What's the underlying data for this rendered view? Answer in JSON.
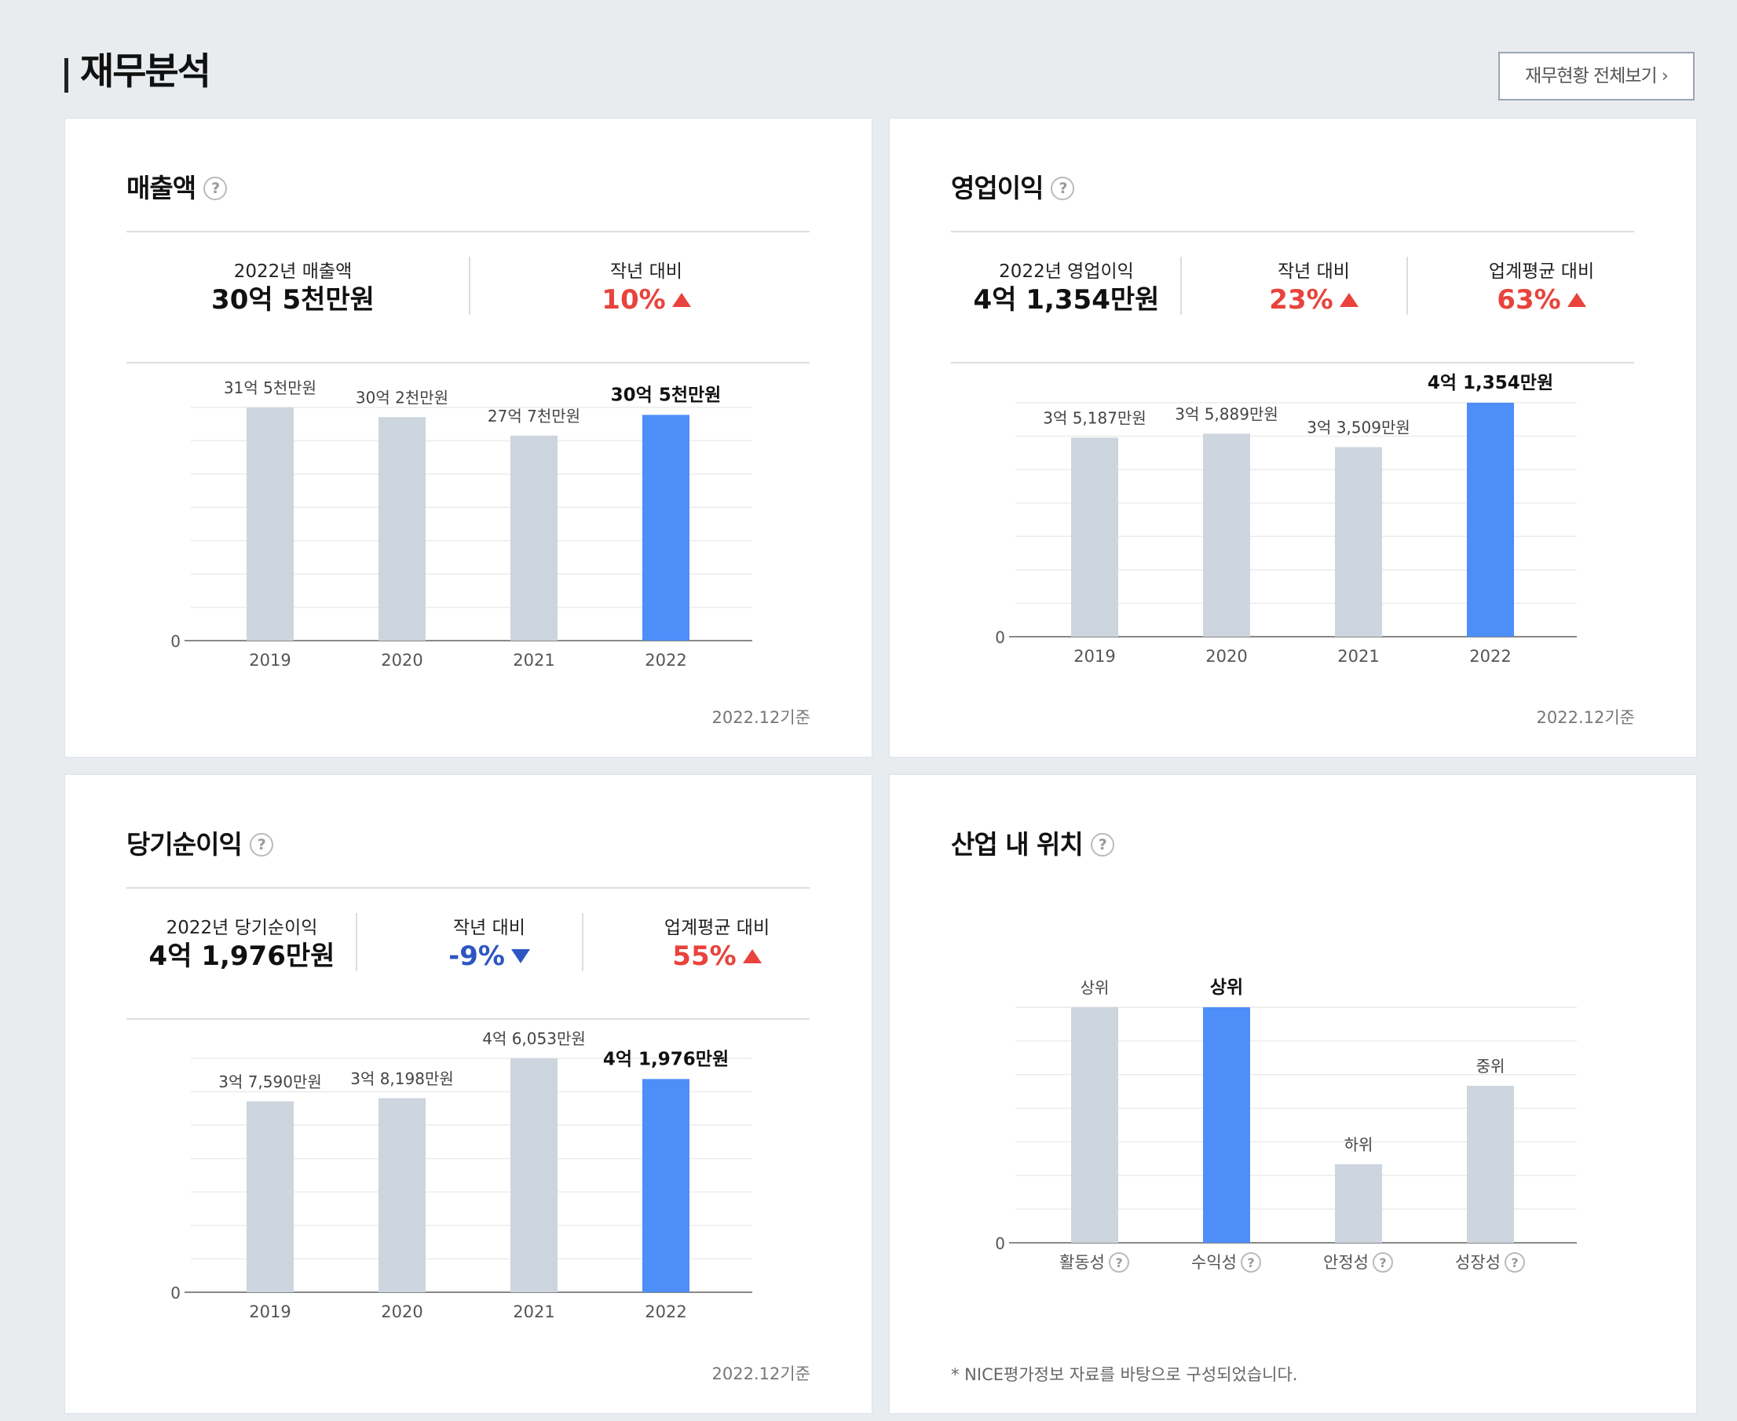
{
  "page": {
    "title": "재무분석",
    "view_all_label": "재무현황 전체보기",
    "view_all_icon": "chevron-right-icon"
  },
  "cards": [
    {
      "title": "매출액",
      "stats": [
        {
          "label": "2022년 매출액",
          "value": "30억 5천만원",
          "trend": "none"
        },
        {
          "label": "작년 대비",
          "value": "10%",
          "trend": "up"
        }
      ],
      "basis": "2022.12기준"
    },
    {
      "title": "영업이익",
      "stats": [
        {
          "label": "2022년 영업이익",
          "value": "4억 1,354만원",
          "trend": "none"
        },
        {
          "label": "작년 대비",
          "value": "23%",
          "trend": "up"
        },
        {
          "label": "업계평균 대비",
          "value": "63%",
          "trend": "up"
        }
      ],
      "basis": "2022.12기준"
    },
    {
      "title": "당기순이익",
      "stats": [
        {
          "label": "2022년 당기순이익",
          "value": "4억 1,976만원",
          "trend": "none"
        },
        {
          "label": "작년 대비",
          "value": "-9%",
          "trend": "down"
        },
        {
          "label": "업계평균 대비",
          "value": "55%",
          "trend": "up"
        }
      ],
      "basis": "2022.12기준"
    },
    {
      "title": "산업 내 위치",
      "note": "* NICE평가정보 자료를 바탕으로 구성되었습니다."
    }
  ],
  "colors": {
    "highlight": "#4d8ef8",
    "normal": "#cdd5de",
    "up": "#e8433c",
    "down": "#2c56c4"
  },
  "chart_data": [
    {
      "type": "bar",
      "categories": [
        "2019",
        "2020",
        "2021",
        "2022"
      ],
      "values": [
        315000,
        302000,
        277000,
        305000
      ],
      "value_labels": [
        "31억 5천만원",
        "30억 2천만원",
        "27억 7천만원",
        "30억 5천만원"
      ],
      "highlight_index": 3,
      "y_tick_labels": [
        "0"
      ],
      "grid": true
    },
    {
      "type": "bar",
      "categories": [
        "2019",
        "2020",
        "2021",
        "2022"
      ],
      "values": [
        35187,
        35889,
        33509,
        41354
      ],
      "value_labels": [
        "3억 5,187만원",
        "3억 5,889만원",
        "3억 3,509만원",
        "4억 1,354만원"
      ],
      "highlight_index": 3,
      "y_tick_labels": [
        "0"
      ],
      "grid": true
    },
    {
      "type": "bar",
      "categories": [
        "2019",
        "2020",
        "2021",
        "2022"
      ],
      "values": [
        37590,
        38198,
        46053,
        41976
      ],
      "value_labels": [
        "3억 7,590만원",
        "3억 8,198만원",
        "4억 6,053만원",
        "4억 1,976만원"
      ],
      "highlight_index": 3,
      "y_tick_labels": [
        "0"
      ],
      "grid": true
    },
    {
      "type": "bar",
      "categories": [
        "활동성",
        "수익성",
        "안정성",
        "성장성"
      ],
      "values": [
        3,
        3,
        1,
        2
      ],
      "value_labels": [
        "상위",
        "상위",
        "하위",
        "중위"
      ],
      "highlight_index": 1,
      "y_tick_labels": [
        "0"
      ],
      "grid": true
    }
  ]
}
